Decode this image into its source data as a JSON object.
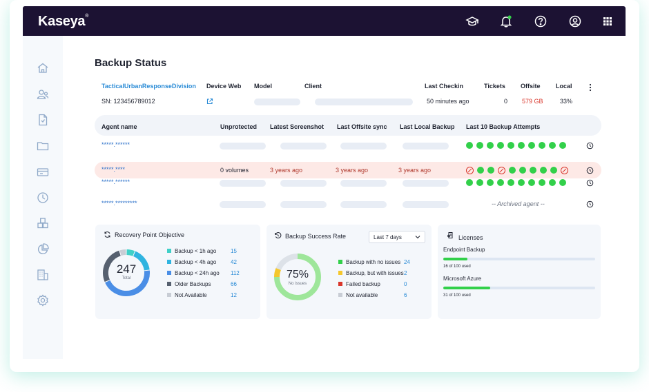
{
  "app": {
    "brand": "Kaseya"
  },
  "topbar": {
    "icons": [
      "graduation-cap-icon",
      "bell-icon",
      "help-icon",
      "user-icon",
      "apps-grid-icon"
    ],
    "accent": "#1c1233",
    "notify_color": "#32d04a"
  },
  "sidebar": {
    "icons": [
      "home-icon",
      "users-icon",
      "document-icon",
      "folder-icon",
      "ticket-icon",
      "clock-icon",
      "boxes-icon",
      "pie-chart-icon",
      "building-icon",
      "settings-icon"
    ]
  },
  "page": {
    "title": "Backup Status"
  },
  "device": {
    "headers": {
      "name": "TacticalUrbanResponseDivision",
      "web": "Device Web",
      "model": "Model",
      "client": "Client",
      "checkin": "Last Checkin",
      "tickets": "Tickets",
      "offsite": "Offsite",
      "local": "Local"
    },
    "values": {
      "serial": "SN: 123456789012",
      "checkin": "50 minutes ago",
      "tickets": "0",
      "offsite": "579 GB",
      "local": "33%"
    }
  },
  "agents": {
    "headers": {
      "name": "Agent name",
      "unprotected": "Unprotected",
      "screenshot": "Latest Screenshot",
      "offsite": "Last Offsite sync",
      "local": "Last Local Backup",
      "attempts": "Last 10 Backup Attempts"
    },
    "rows": [
      {
        "name": "*****.******",
        "unprotected": "",
        "screenshot": "",
        "offsite": "",
        "local": "",
        "attempts": [
          "ok",
          "ok",
          "ok",
          "ok",
          "ok",
          "ok",
          "ok",
          "ok",
          "ok",
          "ok"
        ],
        "archived": ""
      },
      {
        "name": "*****.****",
        "unprotected": "0 volumes",
        "screenshot": "3 years ago",
        "offsite": "3 years ago",
        "local": "3 years ago",
        "attempts": [
          "fail",
          "ok",
          "ok",
          "fail",
          "ok",
          "ok",
          "ok",
          "ok",
          "ok",
          "fail"
        ],
        "archived": ""
      },
      {
        "name": "*****.******",
        "unprotected": "",
        "screenshot": "",
        "offsite": "",
        "local": "",
        "attempts": [
          "ok",
          "ok",
          "ok",
          "ok",
          "ok",
          "ok",
          "ok",
          "ok",
          "ok",
          "ok"
        ],
        "archived": ""
      },
      {
        "name": "*****.*********",
        "unprotected": "",
        "screenshot": "",
        "offsite": "",
        "local": "",
        "attempts": [],
        "archived": "-- Archived agent --"
      }
    ]
  },
  "rpo": {
    "title": "Recovery Point Objective",
    "total": "247",
    "total_label": "Total",
    "items": [
      {
        "label": "Backup < 1h ago",
        "value": "15",
        "color": "#3fd0c8"
      },
      {
        "label": "Backup < 4h ago",
        "value": "42",
        "color": "#2fb4e0"
      },
      {
        "label": "Backup < 24h ago",
        "value": "112",
        "color": "#4a8ee6"
      },
      {
        "label": "Older Backups",
        "value": "66",
        "color": "#56606f"
      },
      {
        "label": "Not Available",
        "value": "12",
        "color": "#c8cdd5"
      }
    ]
  },
  "bsr": {
    "title": "Backup Success Rate",
    "period": "Last 7 days",
    "percent": "75%",
    "percent_label": "No issues",
    "items": [
      {
        "label": "Backup with no issues",
        "value": "24",
        "color": "#32d04a"
      },
      {
        "label": "Backup, but with issues",
        "value": "2",
        "color": "#f5c72c"
      },
      {
        "label": "Failed backup",
        "value": "0",
        "color": "#d9362b"
      },
      {
        "label": "Not available",
        "value": "6",
        "color": "#c8cdd5"
      }
    ],
    "ring_colors": {
      "ok": "#9ee69a",
      "warn": "#f5c72c",
      "na": "#dde2e8"
    }
  },
  "licenses": {
    "title": "Licenses",
    "items": [
      {
        "name": "Endpoint Backup",
        "used_text": "16 of 100 used",
        "fraction": 0.16
      },
      {
        "name": "Microsoft Azure",
        "used_text": "31 of 100 used",
        "fraction": 0.31
      }
    ]
  }
}
